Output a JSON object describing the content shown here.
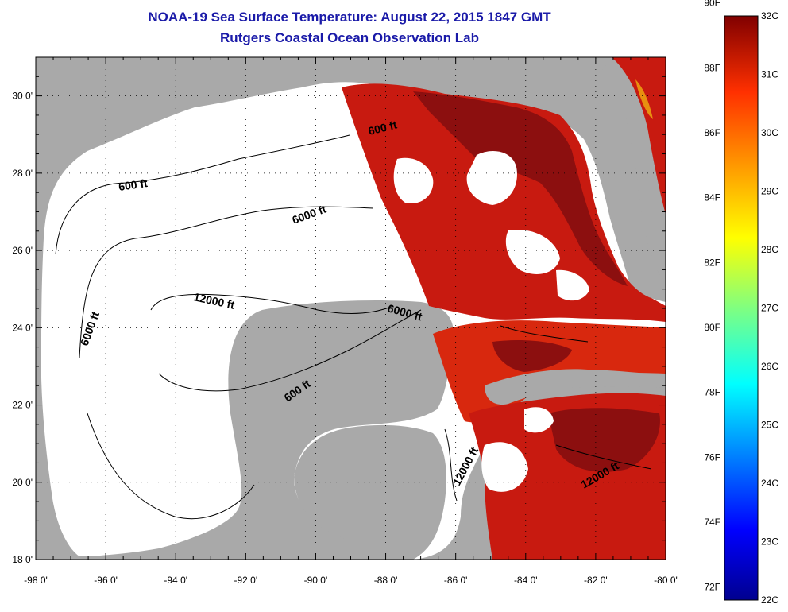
{
  "title": "NOAA-19 Sea Surface Temperature:  August 22, 2015 1847 GMT",
  "subtitle": "Rutgers Coastal Ocean Observation Lab",
  "map": {
    "lon_range": [
      -98,
      -80
    ],
    "lat_range": [
      18,
      31
    ],
    "grid": "dotted",
    "land_color": "#a9a9a9",
    "no_data_color": "#ffffff",
    "lon_ticks": [
      "-98 0'",
      "-96 0'",
      "-94 0'",
      "-92 0'",
      "-90 0'",
      "-88 0'",
      "-86 0'",
      "-84 0'",
      "-82 0'",
      "-80 0'"
    ],
    "lat_ticks": [
      "18 0'",
      "20 0'",
      "22 0'",
      "24 0'",
      "26 0'",
      "28 0'",
      "30 0'"
    ],
    "contour_labels": [
      "600 ft",
      "600 ft",
      "6000 ft",
      "6000 ft",
      "6000 ft",
      "12000 ft",
      "600 ft",
      "12000 ft",
      "12000 ft"
    ]
  },
  "colorbar": {
    "fahrenheit_labels": [
      "90F",
      "88F",
      "86F",
      "84F",
      "82F",
      "80F",
      "78F",
      "76F",
      "74F",
      "72F"
    ],
    "celsius_labels": [
      "32C",
      "31C",
      "30C",
      "29C",
      "28C",
      "27C",
      "26C",
      "25C",
      "24C",
      "23C",
      "22C"
    ],
    "range_c": [
      22,
      32
    ]
  }
}
